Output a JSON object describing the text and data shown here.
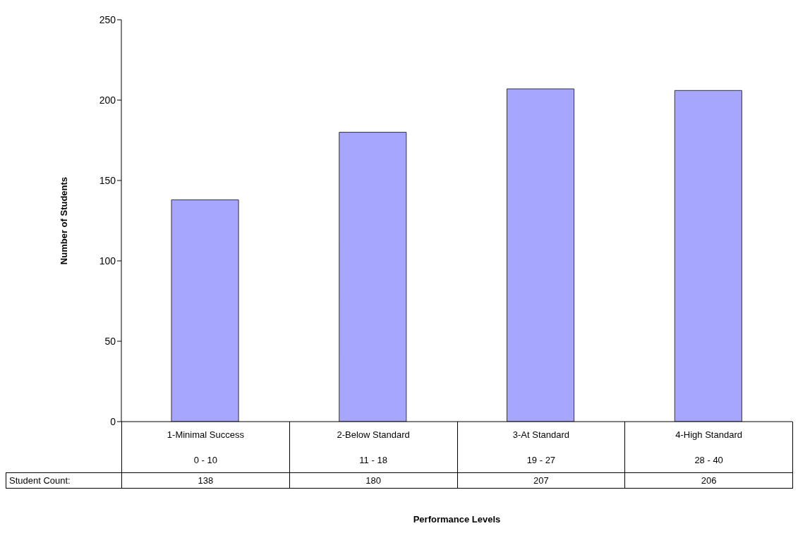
{
  "chart_data": {
    "type": "bar",
    "ylabel": "Number of Students",
    "categories": [
      "1-Minimal Success\n0 - 10",
      "2-Below  Standard\n11 - 18",
      "3-At Standard\n19 - 27",
      "4-High Standard\n28 - 40"
    ],
    "values": [
      138,
      180,
      207,
      206
    ],
    "color": "#a6a6ff",
    "ylim": [
      0,
      250
    ],
    "yticks": [
      0,
      50,
      100,
      150,
      200,
      250
    ],
    "data_labels": true,
    "annotations": [
      "Student Count:",
      "Performance Levels"
    ]
  }
}
